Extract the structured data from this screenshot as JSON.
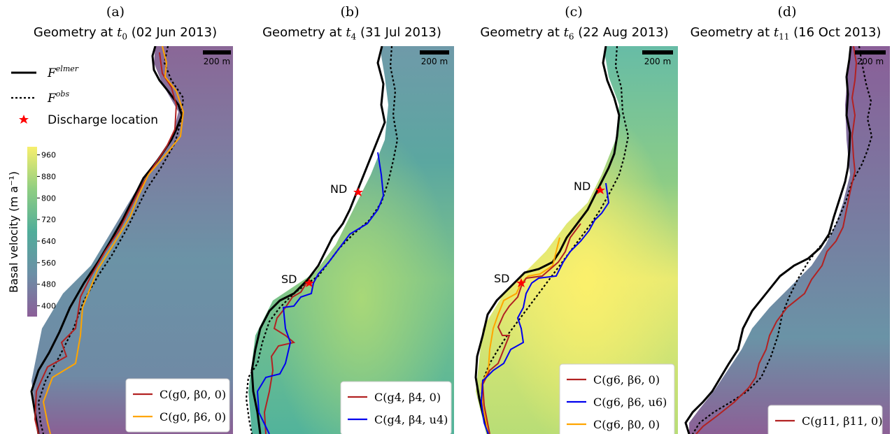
{
  "chart_data": [
    {
      "type": "map",
      "panel": "(a)",
      "title_prefix": "Geometry at ",
      "time_symbol": "t",
      "time_index": "0",
      "date": "(02 Jun 2013)",
      "scalebar": "200 m",
      "background": "low",
      "legend": [
        "C(g0, β0, 0)",
        "C(g0, β6, 0)"
      ],
      "legend_colors": [
        "#b22222",
        "#ffa500"
      ],
      "markers": []
    },
    {
      "type": "map",
      "panel": "(b)",
      "title_prefix": "Geometry at ",
      "time_symbol": "t",
      "time_index": "4",
      "date": "(31 Jul 2013)",
      "scalebar": "200 m",
      "background": "mid",
      "legend": [
        "C(g4, β4, 0)",
        "C(g4, β4, u4)"
      ],
      "legend_colors": [
        "#b22222",
        "#0000ee"
      ],
      "markers": [
        "ND",
        "SD"
      ]
    },
    {
      "type": "map",
      "panel": "(c)",
      "title_prefix": "Geometry at ",
      "time_symbol": "t",
      "time_index": "6",
      "date": "(22 Aug 2013)",
      "scalebar": "200 m",
      "background": "high",
      "legend": [
        "C(g6, β6, 0)",
        "C(g6, β6, u6)",
        "C(g6, β0, 0)"
      ],
      "legend_colors": [
        "#b22222",
        "#0000ee",
        "#ffa500"
      ],
      "markers": [
        "ND",
        "SD"
      ]
    },
    {
      "type": "map",
      "panel": "(d)",
      "title_prefix": "Geometry at ",
      "time_symbol": "t",
      "time_index": "11",
      "date": "(16 Oct 2013)",
      "scalebar": "200 m",
      "background": "low",
      "legend": [
        "C(g11, β11, 0)"
      ],
      "legend_colors": [
        "#b22222"
      ],
      "markers": []
    }
  ],
  "figure_legend": {
    "elmer": "elmer",
    "obs": "obs",
    "discharge": "Discharge location"
  },
  "colorbar": {
    "label": "Basal velocity (m a⁻¹)",
    "ticks": [
      960,
      880,
      800,
      720,
      640,
      560,
      480,
      400
    ],
    "range": [
      360,
      990
    ]
  },
  "colors": {
    "viridis_low": "#8c5f97",
    "viridis_mid": "#4fae8a",
    "viridis_high": "#f5ee6e",
    "front_elmer": "#000000",
    "discharge": "#ff0000"
  }
}
